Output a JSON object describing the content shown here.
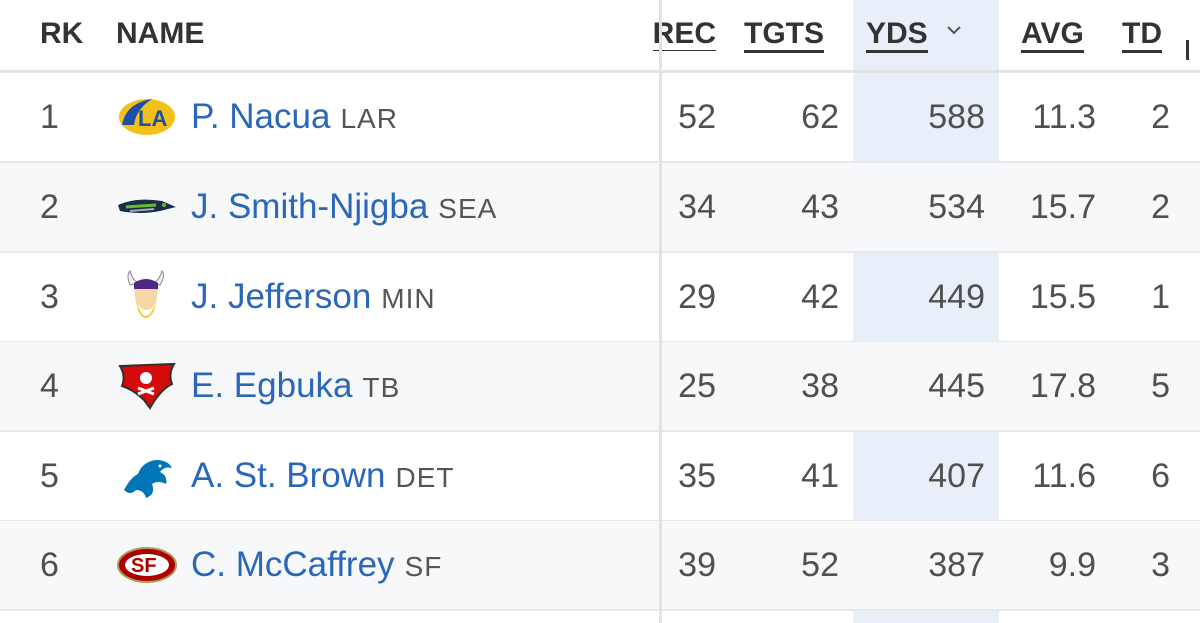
{
  "columns": {
    "rank": "RK",
    "name": "NAME",
    "rec": "REC",
    "tgts": "TGTS",
    "yds": "YDS",
    "avg": "AVG",
    "td": "TD"
  },
  "sort": {
    "column": "YDS",
    "direction": "descending",
    "icon": "chevron-down-icon"
  },
  "colors": {
    "link": "#2b67b8",
    "sorted_column_bg": "#e9eff8",
    "alt_row_bg": "#f7f8fa"
  },
  "rows": [
    {
      "rank": "1",
      "name": "P. Nacua",
      "team": "LAR",
      "logo": "rams-logo",
      "rec": "52",
      "tgts": "62",
      "yds": "588",
      "avg": "11.3",
      "td": "2"
    },
    {
      "rank": "2",
      "name": "J. Smith-Njigba",
      "team": "SEA",
      "logo": "seahawks-logo",
      "rec": "34",
      "tgts": "43",
      "yds": "534",
      "avg": "15.7",
      "td": "2"
    },
    {
      "rank": "3",
      "name": "J. Jefferson",
      "team": "MIN",
      "logo": "vikings-logo",
      "rec": "29",
      "tgts": "42",
      "yds": "449",
      "avg": "15.5",
      "td": "1"
    },
    {
      "rank": "4",
      "name": "E. Egbuka",
      "team": "TB",
      "logo": "buccaneers-logo",
      "rec": "25",
      "tgts": "38",
      "yds": "445",
      "avg": "17.8",
      "td": "5"
    },
    {
      "rank": "5",
      "name": "A. St. Brown",
      "team": "DET",
      "logo": "lions-logo",
      "rec": "35",
      "tgts": "41",
      "yds": "407",
      "avg": "11.6",
      "td": "6"
    },
    {
      "rank": "6",
      "name": "C. McCaffrey",
      "team": "SF",
      "logo": "49ers-logo",
      "rec": "39",
      "tgts": "52",
      "yds": "387",
      "avg": "9.9",
      "td": "3"
    }
  ]
}
